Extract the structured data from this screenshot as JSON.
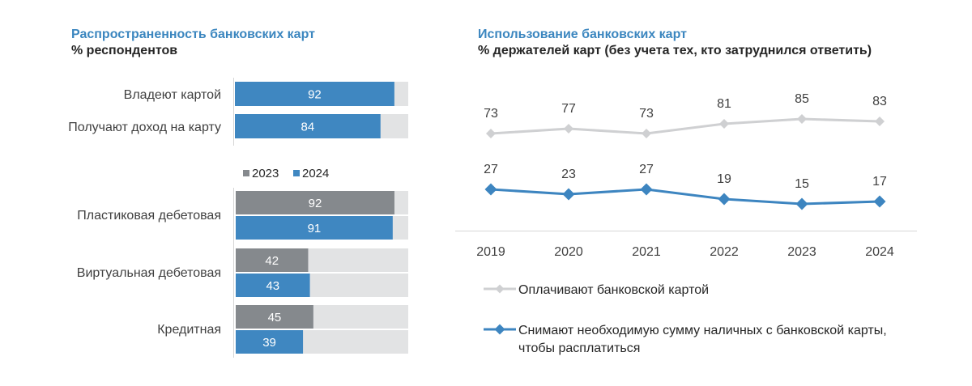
{
  "colors": {
    "title": "#3b86bf",
    "blue": "#3f87c1",
    "blue_line": "#3d85c0",
    "gray_bar": "#85898d",
    "track": "#e2e3e4",
    "gray_line": "#cfd0d2",
    "axis": "#d6d6d6",
    "text": "#404040"
  },
  "left_chart": {
    "title": "Распространенность банковских карт",
    "subtitle": "% респондентов"
  },
  "right_chart": {
    "title": "Использование банковских карт",
    "subtitle": "% держателей карт (без учета тех, кто затруднился ответить)"
  },
  "chart_data": [
    {
      "type": "bar",
      "orientation": "horizontal",
      "max": 100,
      "categories": [
        "Владеют картой",
        "Получают доход на карту"
      ],
      "series": [
        {
          "values": [
            92,
            84
          ]
        }
      ]
    },
    {
      "type": "bar",
      "orientation": "horizontal",
      "max": 100,
      "categories": [
        "Пластиковая дебетовая",
        "Виртуальная дебетовая",
        "Кредитная"
      ],
      "series": [
        {
          "name": "2023",
          "color": "#85898d",
          "values": [
            92,
            42,
            45
          ]
        },
        {
          "name": "2024",
          "color": "#3f87c1",
          "values": [
            91,
            43,
            39
          ]
        }
      ],
      "legend": {
        "position": "top"
      }
    },
    {
      "type": "line",
      "x": [
        "2019",
        "2020",
        "2021",
        "2022",
        "2023",
        "2024"
      ],
      "series": [
        {
          "name": "Оплачивают банковской картой",
          "values": [
            73,
            77,
            73,
            81,
            85,
            83
          ],
          "color": "#cfd0d2",
          "marker": "diamond"
        },
        {
          "name": "Снимают необходимую сумму наличных с банковской карты, чтобы расплатиться",
          "values": [
            27,
            23,
            27,
            19,
            15,
            17
          ],
          "color": "#3d85c0",
          "marker": "diamond"
        }
      ],
      "legend": {
        "position": "bottom"
      },
      "grid": false
    }
  ]
}
